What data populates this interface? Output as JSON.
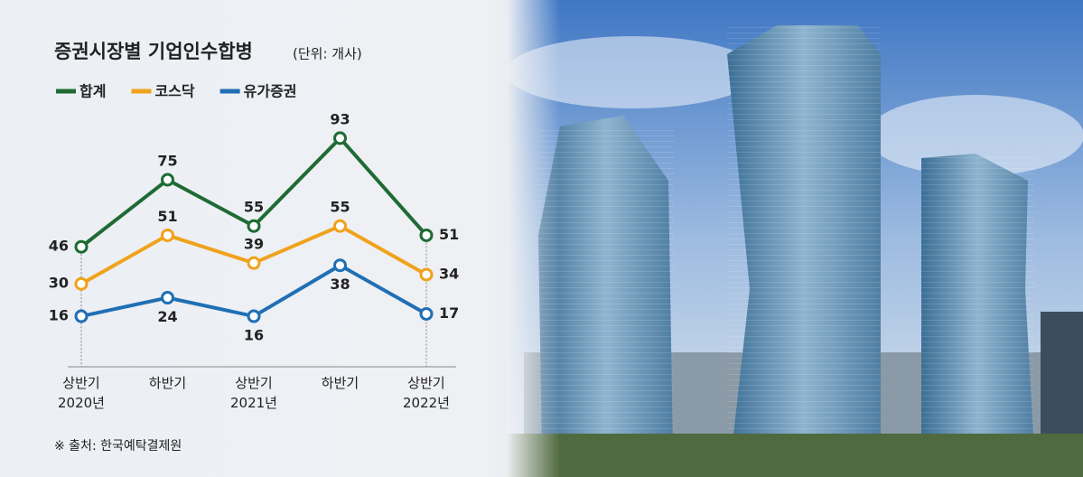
{
  "chart_data": {
    "type": "line",
    "title": "증권시장별 기업인수합병",
    "subtitle": "(단위: 개사)",
    "categories": [
      "상반기\n2020년",
      "하반기",
      "상반기\n2021년",
      "하반기",
      "상반기\n2022년"
    ],
    "series": [
      {
        "name": "합계",
        "color": "#1e6b33",
        "values": [
          46,
          75,
          55,
          93,
          51
        ]
      },
      {
        "name": "코스닥",
        "color": "#f0a21c",
        "values": [
          30,
          51,
          39,
          55,
          34
        ]
      },
      {
        "name": "유가증권",
        "color": "#1f6fb4",
        "values": [
          16,
          24,
          16,
          38,
          17
        ]
      }
    ],
    "source": "※ 출처: 한국예탁결제원"
  }
}
